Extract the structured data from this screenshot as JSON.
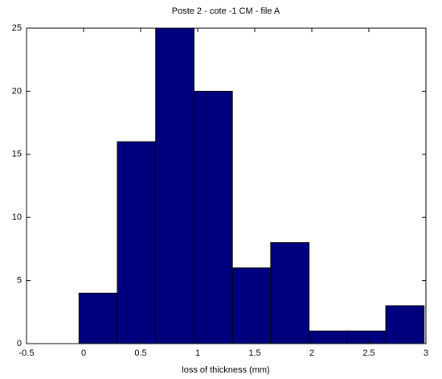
{
  "chart_data": {
    "type": "histogram",
    "title": "Poste 2 - cote -1 CM  - file A",
    "x_label": "loss of thickness (mm)",
    "bins": [
      -0.04,
      0.296,
      0.632,
      0.968,
      1.304,
      1.64,
      1.976,
      2.312,
      2.648,
      2.984
    ],
    "values": [
      4,
      16,
      25,
      20,
      6,
      8,
      1,
      1,
      3
    ],
    "color": "#00007f",
    "xlim": [
      -0.5,
      3
    ],
    "xticks": [
      -0.5,
      0,
      0.5,
      1,
      1.5,
      2,
      2.5,
      3
    ],
    "ylim": [
      0,
      25
    ],
    "yticks": [
      0,
      5,
      10,
      15,
      20,
      25
    ],
    "grid": false
  }
}
